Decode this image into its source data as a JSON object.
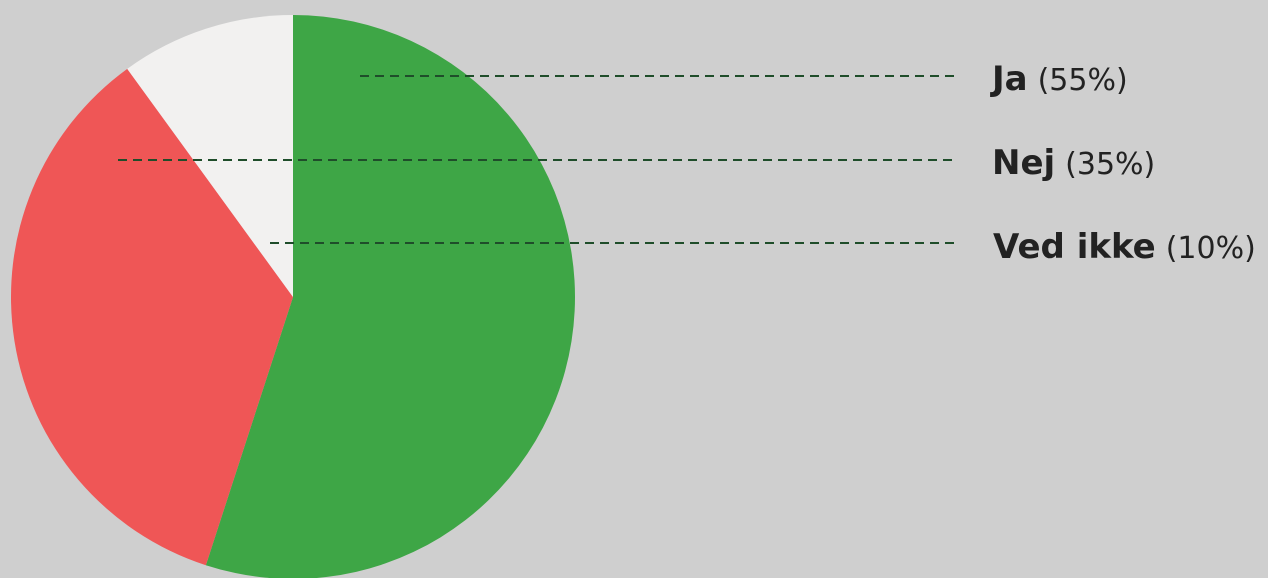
{
  "chart_data": {
    "type": "pie",
    "title": "",
    "slices": [
      {
        "label": "Ja",
        "value": 55,
        "value_label": "(55%)",
        "color": "#3ea646"
      },
      {
        "label": "Nej",
        "value": 35,
        "value_label": "(35%)",
        "color": "#ef5656"
      },
      {
        "label": "Ved ikke",
        "value": 10,
        "value_label": "(10%)",
        "color": "#f2f1f0"
      }
    ],
    "start_angle": "12 o'clock",
    "direction": "clockwise",
    "legend": "right, leader lines",
    "leader_line_color": "#1f4d2a",
    "background": "#cfcfcf"
  }
}
